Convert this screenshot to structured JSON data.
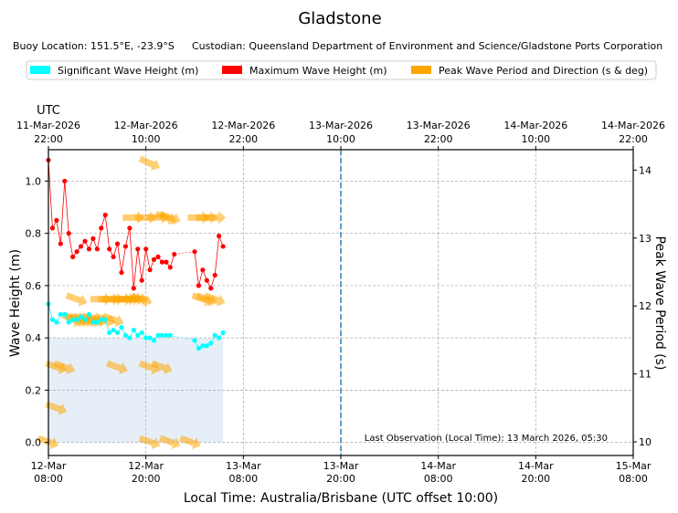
{
  "chart_data": {
    "type": "line",
    "title": "Gladstone",
    "subtitle_left": "Buoy Location: 151.5°E, -23.9°S",
    "subtitle_right": "Custodian: Queensland Department of Environment and Science/Gladstone Ports Corporation",
    "legend": [
      {
        "label": "Significant Wave Height (m)",
        "color": "#00ffff"
      },
      {
        "label": "Maximum Wave Height (m)",
        "color": "#ff0000"
      },
      {
        "label": "Peak Wave Period and Direction (s & deg)",
        "color": "#ffa500"
      }
    ],
    "xlabel": "Local Time: Australia/Brisbane (UTC offset 10:00)",
    "ylabel": "Wave Height (m)",
    "y2label": "Peak Wave Period (s)",
    "top_axis_label": "UTC",
    "xlim_hours": [
      0,
      72
    ],
    "ylim": [
      -0.05,
      1.12
    ],
    "y2lim": [
      9.8,
      14.3
    ],
    "yticks": [
      "0.0",
      "0.2",
      "0.4",
      "0.6",
      "0.8",
      "1.0"
    ],
    "y2ticks": [
      "10",
      "11",
      "12",
      "13",
      "14"
    ],
    "bottom_ticks": [
      {
        "h": 0,
        "date": "12-Mar",
        "time": "08:00"
      },
      {
        "h": 12,
        "date": "12-Mar",
        "time": "20:00"
      },
      {
        "h": 24,
        "date": "13-Mar",
        "time": "08:00"
      },
      {
        "h": 36,
        "date": "13-Mar",
        "time": "20:00"
      },
      {
        "h": 48,
        "date": "14-Mar",
        "time": "08:00"
      },
      {
        "h": 60,
        "date": "14-Mar",
        "time": "20:00"
      },
      {
        "h": 72,
        "date": "15-Mar",
        "time": "08:00"
      }
    ],
    "top_ticks": [
      {
        "h": 0,
        "date": "11-Mar-2026",
        "time": "22:00"
      },
      {
        "h": 12,
        "date": "12-Mar-2026",
        "time": "10:00"
      },
      {
        "h": 24,
        "date": "12-Mar-2026",
        "time": "22:00"
      },
      {
        "h": 36,
        "date": "13-Mar-2026",
        "time": "10:00"
      },
      {
        "h": 48,
        "date": "13-Mar-2026",
        "time": "22:00"
      },
      {
        "h": 60,
        "date": "14-Mar-2026",
        "time": "10:00"
      },
      {
        "h": 72,
        "date": "14-Mar-2026",
        "time": "22:00"
      }
    ],
    "now_line_hour": 36,
    "annotation": "Last Observation (Local Time): 13 March 2026, 05:30",
    "hsig_fill_until_hour": 21.5,
    "hsig": [
      [
        0,
        0.53
      ],
      [
        0.5,
        0.47
      ],
      [
        1,
        0.46
      ],
      [
        1.5,
        0.49
      ],
      [
        2,
        0.49
      ],
      [
        2.5,
        0.46
      ],
      [
        3,
        0.47
      ],
      [
        3.5,
        0.47
      ],
      [
        4,
        0.48
      ],
      [
        4.5,
        0.47
      ],
      [
        5,
        0.49
      ],
      [
        5.5,
        0.46
      ],
      [
        6,
        0.46
      ],
      [
        6.5,
        0.47
      ],
      [
        7,
        0.47
      ],
      [
        7.5,
        0.42
      ],
      [
        8,
        0.43
      ],
      [
        8.5,
        0.42
      ],
      [
        9,
        0.44
      ],
      [
        9.5,
        0.41
      ],
      [
        10,
        0.4
      ],
      [
        10.5,
        0.43
      ],
      [
        11,
        0.41
      ],
      [
        11.5,
        0.42
      ],
      [
        12,
        0.4
      ],
      [
        12.5,
        0.4
      ],
      [
        13,
        0.39
      ],
      [
        13.5,
        0.41
      ],
      [
        14,
        0.41
      ],
      [
        14.5,
        0.41
      ],
      [
        15,
        0.41
      ],
      [
        18,
        0.39
      ],
      [
        18.5,
        0.36
      ],
      [
        19,
        0.37
      ],
      [
        19.5,
        0.37
      ],
      [
        20,
        0.38
      ],
      [
        20.5,
        0.41
      ],
      [
        21,
        0.4
      ],
      [
        21.5,
        0.42
      ]
    ],
    "hmax": [
      [
        0,
        1.08
      ],
      [
        0.5,
        0.82
      ],
      [
        1,
        0.85
      ],
      [
        1.5,
        0.76
      ],
      [
        2,
        1.0
      ],
      [
        2.5,
        0.8
      ],
      [
        3,
        0.71
      ],
      [
        3.5,
        0.73
      ],
      [
        4,
        0.75
      ],
      [
        4.5,
        0.77
      ],
      [
        5,
        0.74
      ],
      [
        5.5,
        0.78
      ],
      [
        6,
        0.74
      ],
      [
        6.5,
        0.82
      ],
      [
        7,
        0.87
      ],
      [
        7.5,
        0.74
      ],
      [
        8,
        0.71
      ],
      [
        8.5,
        0.76
      ],
      [
        9,
        0.65
      ],
      [
        9.5,
        0.75
      ],
      [
        10,
        0.82
      ],
      [
        10.5,
        0.59
      ],
      [
        11,
        0.74
      ],
      [
        11.5,
        0.62
      ],
      [
        12,
        0.74
      ],
      [
        12.5,
        0.66
      ],
      [
        13,
        0.7
      ],
      [
        13.5,
        0.71
      ],
      [
        14,
        0.69
      ],
      [
        14.5,
        0.69
      ],
      [
        15,
        0.67
      ],
      [
        15.5,
        0.72
      ],
      [
        18,
        0.73
      ],
      [
        18.5,
        0.6
      ],
      [
        19,
        0.66
      ],
      [
        19.5,
        0.62
      ],
      [
        20,
        0.59
      ],
      [
        20.5,
        0.64
      ],
      [
        21,
        0.79
      ],
      [
        21.5,
        0.75
      ]
    ],
    "period_direction": [
      [
        0,
        10.0,
        110
      ],
      [
        1,
        10.5,
        110
      ],
      [
        1,
        11.1,
        110
      ],
      [
        2,
        11.1,
        110
      ],
      [
        3,
        11.8,
        115
      ],
      [
        3.5,
        11.8,
        110
      ],
      [
        4,
        11.8,
        110
      ],
      [
        4.5,
        11.8,
        110
      ],
      [
        5,
        11.8,
        110
      ],
      [
        5.5,
        11.8,
        110
      ],
      [
        6,
        11.8,
        110
      ],
      [
        7,
        11.8,
        110
      ],
      [
        8,
        11.8,
        110
      ],
      [
        8.5,
        11.1,
        110
      ],
      [
        3.5,
        12.1,
        110
      ],
      [
        6.5,
        12.1,
        90
      ],
      [
        7.5,
        12.1,
        90
      ],
      [
        8,
        12.1,
        90
      ],
      [
        9,
        12.1,
        90
      ],
      [
        9.5,
        12.1,
        90
      ],
      [
        10,
        12.1,
        90
      ],
      [
        10.5,
        12.1,
        90
      ],
      [
        11,
        12.1,
        90
      ],
      [
        11.5,
        12.1,
        110
      ],
      [
        10.5,
        13.3,
        90
      ],
      [
        12,
        13.3,
        90
      ],
      [
        13.5,
        13.3,
        90
      ],
      [
        14.5,
        13.3,
        110
      ],
      [
        15,
        13.3,
        110
      ],
      [
        12.5,
        14.1,
        115
      ],
      [
        12.5,
        11.1,
        110
      ],
      [
        14,
        11.1,
        110
      ],
      [
        12.5,
        10.0,
        110
      ],
      [
        15,
        10.0,
        110
      ],
      [
        17.5,
        10.0,
        110
      ],
      [
        19,
        12.1,
        110
      ],
      [
        19.5,
        12.1,
        110
      ],
      [
        18.5,
        13.3,
        90
      ],
      [
        19.5,
        13.3,
        90
      ],
      [
        20.5,
        13.3,
        90
      ],
      [
        20.5,
        12.1,
        110
      ]
    ]
  }
}
